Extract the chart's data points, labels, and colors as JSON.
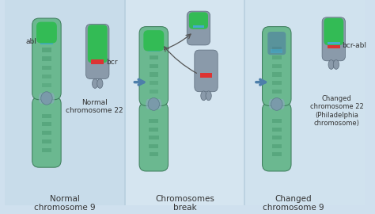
{
  "bg_color": "#cfe0ee",
  "panel_bg1": "#c5dcea",
  "panel_divider_color": "#b8cfdf",
  "text_color": "#333333",
  "arrow_color": "#4d7faa",
  "panel1_title": "Normal\nchromosome 9",
  "panel2_title": "Chromosomes\nbreak",
  "panel3_title": "Changed\nchromosome 9",
  "chr22_normal_label": "Normal\nchromosome 22",
  "chr22_changed_label": "Changed\nchromosome 22\n(Philadelphia\nchromosome)",
  "bcr_label": "bcr",
  "abl_label": "abl",
  "bcr_abl_label": "bcr-abl",
  "chr9_green": "#6bb890",
  "chr9_stripe": "#4a9a70",
  "chr9_dark_stripe": "#3a8060",
  "chr9_centromere": "#88aaaa",
  "chr9_bottom_dark": "#5588aa",
  "chr22_gray": "#8899aa",
  "chr22_gray_dark": "#6677889",
  "bcr_color": "#dd3333",
  "abl_color": "#44aacc",
  "green_end_color": "#33bb55",
  "cross_arrow_color": "#555555"
}
